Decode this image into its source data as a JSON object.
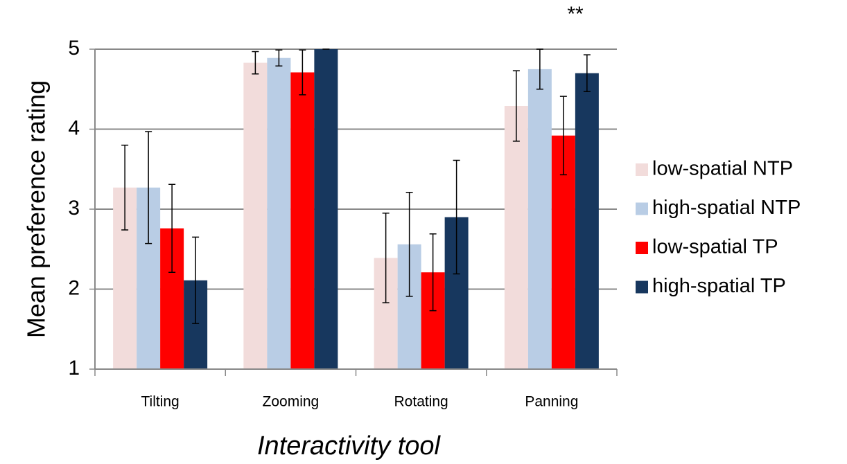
{
  "chart_data": {
    "type": "bar",
    "y_label": "Mean preference rating",
    "x_label": "Interactivity tool",
    "annotation": "**",
    "categories": [
      "Tilting",
      "Zooming",
      "Rotating",
      "Panning"
    ],
    "series": [
      {
        "name": "low-spatial NTP",
        "color": "#f2dcdb",
        "values": [
          3.27,
          4.83,
          2.39,
          4.29
        ],
        "errors": [
          0.53,
          0.14,
          0.56,
          0.44
        ]
      },
      {
        "name": "high-spatial NTP",
        "color": "#b9cde5",
        "values": [
          3.27,
          4.89,
          2.56,
          4.75
        ],
        "errors": [
          0.7,
          0.1,
          0.65,
          0.25
        ]
      },
      {
        "name": "low-spatial TP",
        "color": "#ff0000",
        "values": [
          2.76,
          4.71,
          2.21,
          3.92
        ],
        "errors": [
          0.55,
          0.28,
          0.48,
          0.49
        ]
      },
      {
        "name": "high-spatial TP",
        "color": "#17375e",
        "values": [
          2.11,
          5.0,
          2.9,
          4.7
        ],
        "errors": [
          0.54,
          0,
          0.71,
          0.23
        ]
      }
    ],
    "ylim": [
      1,
      5
    ],
    "yticks": [
      1,
      2,
      3,
      4,
      5
    ],
    "grid": true,
    "legend": "right"
  }
}
